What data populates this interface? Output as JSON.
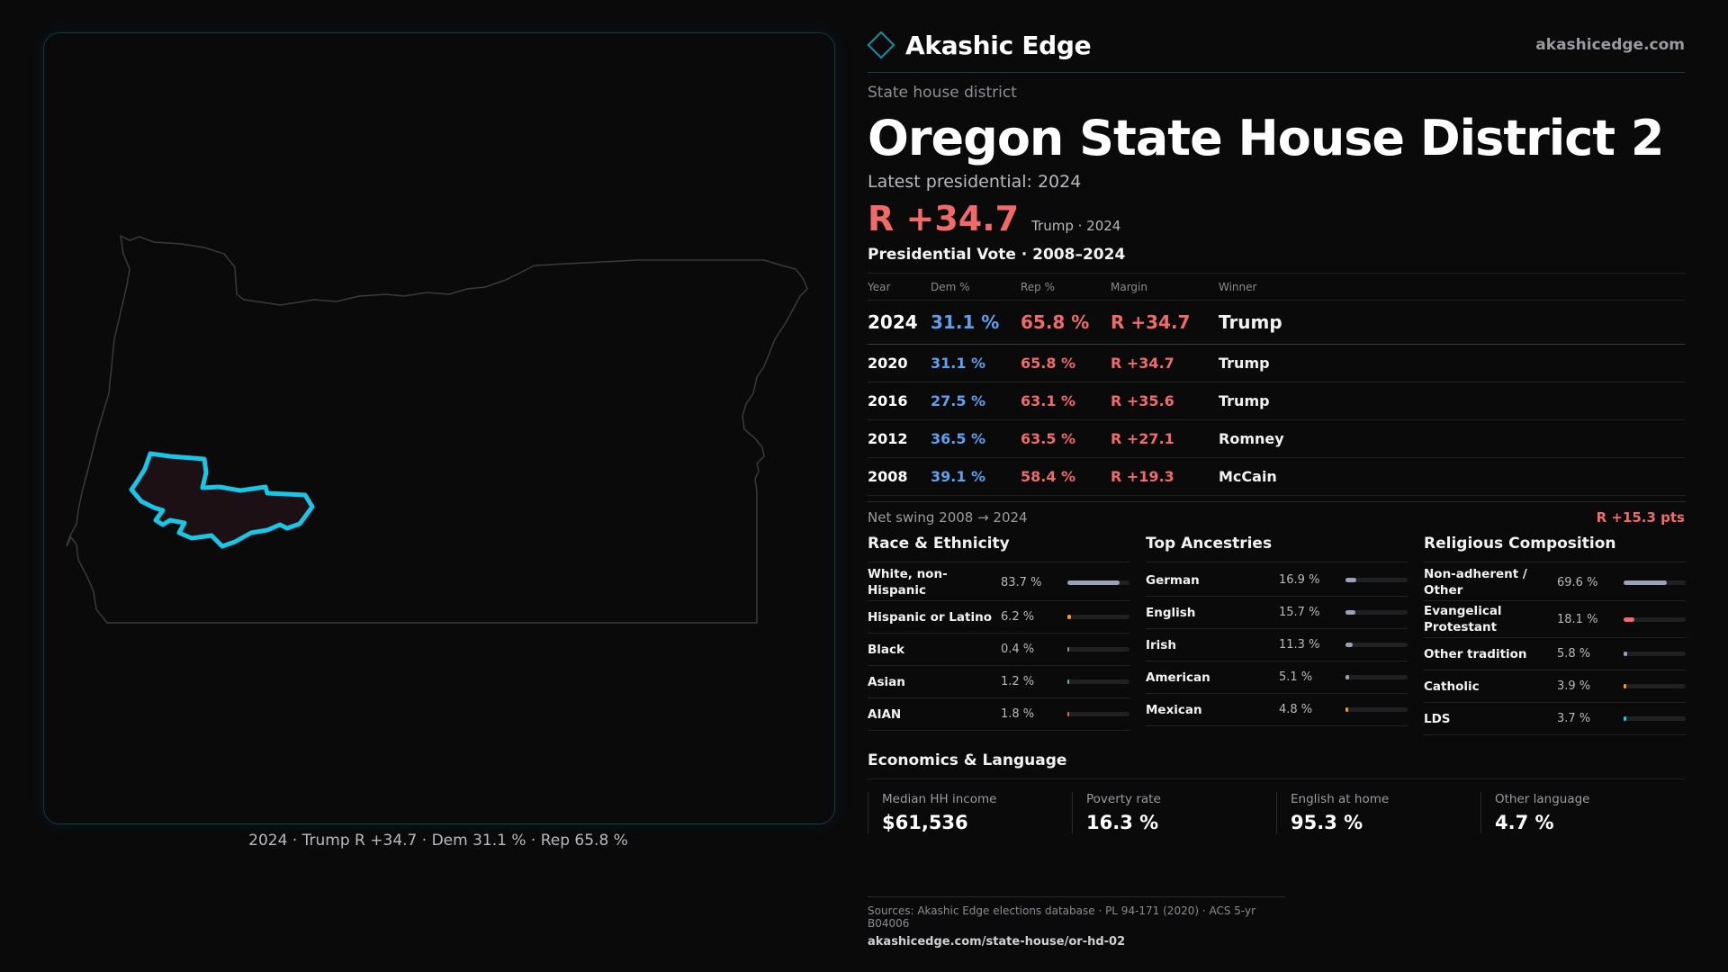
{
  "map": {
    "caption": "2024 · Trump R +34.7 · Dem 31.1 % · Rep 65.8 %",
    "state_outline_color": "#3a3a3c",
    "district_stroke_color": "#19c6e6",
    "district_fill_color": "#1d1014"
  },
  "brand": {
    "name": "Akashic Edge",
    "url": "akashicedge.com",
    "icon": "diamond-logo-icon"
  },
  "district": {
    "type": "State house district",
    "title": "Oregon State House District 2",
    "latest_label": "Latest presidential: 2024",
    "margin": "R +34.7",
    "margin_sub": "Trump · 2024"
  },
  "presidential": {
    "title": "Presidential Vote · 2008–2024",
    "headers": {
      "year": "Year",
      "dem": "Dem %",
      "rep": "Rep %",
      "margin": "Margin",
      "winner": "Winner"
    },
    "rows": [
      {
        "year": "2024",
        "dem": "31.1 %",
        "rep": "65.8 %",
        "margin": "R +34.7",
        "winner": "Trump"
      },
      {
        "year": "2020",
        "dem": "31.1 %",
        "rep": "65.8 %",
        "margin": "R +34.7",
        "winner": "Trump"
      },
      {
        "year": "2016",
        "dem": "27.5 %",
        "rep": "63.1 %",
        "margin": "R +35.6",
        "winner": "Trump"
      },
      {
        "year": "2012",
        "dem": "36.5 %",
        "rep": "63.5 %",
        "margin": "R +27.1",
        "winner": "Romney"
      },
      {
        "year": "2008",
        "dem": "39.1 %",
        "rep": "58.4 %",
        "margin": "R +19.3",
        "winner": "McCain"
      }
    ],
    "swing_label": "Net swing 2008 → 2024",
    "swing_value": "R +15.3 pts"
  },
  "race": {
    "title": "Race & Ethnicity",
    "items": [
      {
        "label": "White, non-Hispanic",
        "pct": "83.7 %",
        "value": 83.7,
        "color": "#9aa3b5"
      },
      {
        "label": "Hispanic or Latino",
        "pct": "6.2 %",
        "value": 6.2,
        "color": "#f0a020"
      },
      {
        "label": "Black",
        "pct": "0.4 %",
        "value": 0.4,
        "color": "#8a8a90"
      },
      {
        "label": "Asian",
        "pct": "1.2 %",
        "value": 1.2,
        "color": "#4ac080"
      },
      {
        "label": "AIAN",
        "pct": "1.8 %",
        "value": 1.8,
        "color": "#e0702a"
      }
    ]
  },
  "ancestries": {
    "title": "Top Ancestries",
    "items": [
      {
        "label": "German",
        "pct": "16.9 %",
        "value": 16.9,
        "color": "#9aa3b5"
      },
      {
        "label": "English",
        "pct": "15.7 %",
        "value": 15.7,
        "color": "#9aa3b5"
      },
      {
        "label": "Irish",
        "pct": "11.3 %",
        "value": 11.3,
        "color": "#9aa3b5"
      },
      {
        "label": "American",
        "pct": "5.1 %",
        "value": 5.1,
        "color": "#9aa3b5"
      },
      {
        "label": "Mexican",
        "pct": "4.8 %",
        "value": 4.8,
        "color": "#f0a020"
      }
    ]
  },
  "religion": {
    "title": "Religious Composition",
    "items": [
      {
        "label": "Non-adherent / Other",
        "pct": "69.6 %",
        "value": 69.6,
        "color": "#9aa3b5"
      },
      {
        "label": "Evangelical Protestant",
        "pct": "18.1 %",
        "value": 18.1,
        "color": "#f06a6a"
      },
      {
        "label": "Other tradition",
        "pct": "5.8 %",
        "value": 5.8,
        "color": "#9aa3b5"
      },
      {
        "label": "Catholic",
        "pct": "3.9 %",
        "value": 3.9,
        "color": "#f0a020"
      },
      {
        "label": "LDS",
        "pct": "3.7 %",
        "value": 3.7,
        "color": "#19c6e6"
      }
    ]
  },
  "economics": {
    "title": "Economics & Language",
    "cards": [
      {
        "label": "Median HH income",
        "value": "$61,536"
      },
      {
        "label": "Poverty rate",
        "value": "16.3 %"
      },
      {
        "label": "English at home",
        "value": "95.3 %"
      },
      {
        "label": "Other language",
        "value": "4.7 %"
      }
    ]
  },
  "sources": {
    "line": "Sources: Akashic Edge elections database · PL 94-171 (2020) · ACS 5-yr B04006",
    "url": "akashicedge.com/state-house/or-hd-02"
  }
}
